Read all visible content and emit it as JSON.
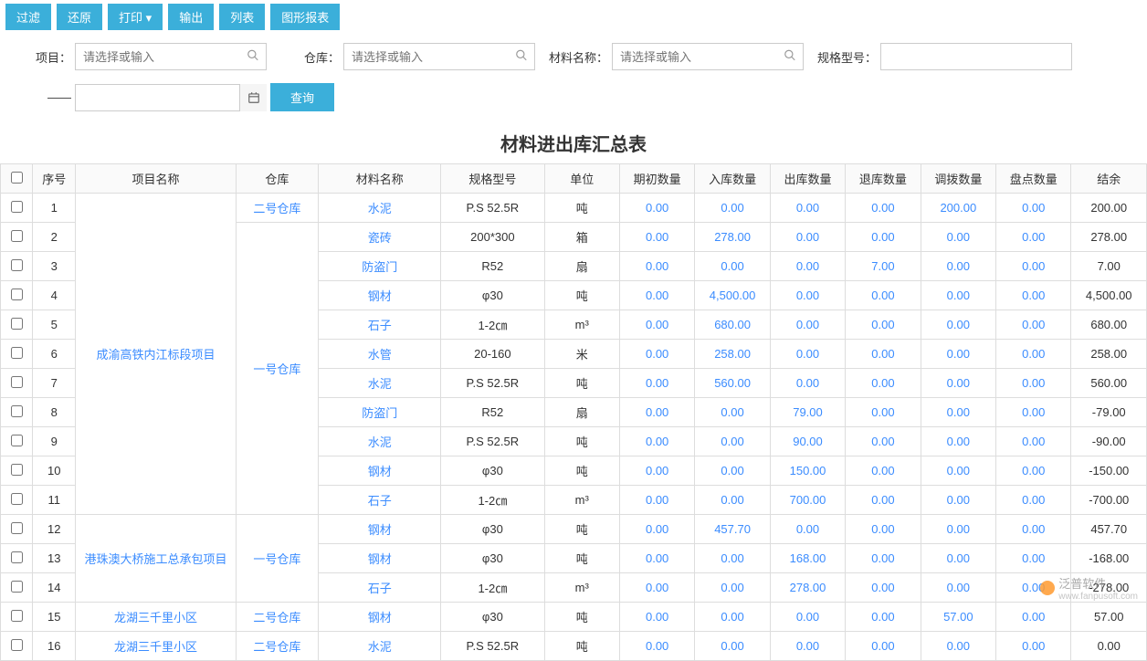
{
  "colors": {
    "primary": "#3bafda",
    "link": "#3b8cff",
    "border": "#ddd",
    "text": "#333"
  },
  "toolbar": {
    "filter": "过滤",
    "reset": "还原",
    "print": "打印",
    "export": "输出",
    "list": "列表",
    "chart": "图形报表"
  },
  "filters": {
    "project_label": "项目：",
    "project_placeholder": "请选择或输入",
    "warehouse_label": "仓库：",
    "warehouse_placeholder": "请选择或输入",
    "material_label": "材料名称：",
    "material_placeholder": "请选择或输入",
    "spec_label": "规格型号：",
    "dash": "——",
    "query": "查询"
  },
  "report": {
    "title": "材料进出库汇总表"
  },
  "table": {
    "headers": {
      "seq": "序号",
      "project": "项目名称",
      "warehouse": "仓库",
      "material": "材料名称",
      "spec": "规格型号",
      "unit": "单位",
      "begin": "期初数量",
      "in": "入库数量",
      "out": "出库数量",
      "return": "退库数量",
      "transfer": "调拨数量",
      "check": "盘点数量",
      "balance": "结余"
    },
    "rows": [
      {
        "seq": "1",
        "project": "成渝高铁内江标段项目",
        "warehouse": "二号仓库",
        "material": "水泥",
        "spec": "P.S 52.5R",
        "unit": "吨",
        "begin": "0.00",
        "in": "0.00",
        "out": "0.00",
        "return": "0.00",
        "transfer": "200.00",
        "check": "0.00",
        "balance": "200.00"
      },
      {
        "seq": "2",
        "project": "",
        "warehouse": "一号仓库",
        "material": "瓷砖",
        "spec": "200*300",
        "unit": "箱",
        "begin": "0.00",
        "in": "278.00",
        "out": "0.00",
        "return": "0.00",
        "transfer": "0.00",
        "check": "0.00",
        "balance": "278.00"
      },
      {
        "seq": "3",
        "project": "",
        "warehouse": "",
        "material": "防盗门",
        "spec": "R52",
        "unit": "扇",
        "begin": "0.00",
        "in": "0.00",
        "out": "0.00",
        "return": "7.00",
        "transfer": "0.00",
        "check": "0.00",
        "balance": "7.00"
      },
      {
        "seq": "4",
        "project": "",
        "warehouse": "",
        "material": "钢材",
        "spec": "φ30",
        "unit": "吨",
        "begin": "0.00",
        "in": "4,500.00",
        "out": "0.00",
        "return": "0.00",
        "transfer": "0.00",
        "check": "0.00",
        "balance": "4,500.00"
      },
      {
        "seq": "5",
        "project": "",
        "warehouse": "",
        "material": "石子",
        "spec": "1-2㎝",
        "unit": "m&#179;",
        "begin": "0.00",
        "in": "680.00",
        "out": "0.00",
        "return": "0.00",
        "transfer": "0.00",
        "check": "0.00",
        "balance": "680.00"
      },
      {
        "seq": "6",
        "project": "",
        "warehouse": "",
        "material": "水管",
        "spec": "20-160",
        "unit": "米",
        "begin": "0.00",
        "in": "258.00",
        "out": "0.00",
        "return": "0.00",
        "transfer": "0.00",
        "check": "0.00",
        "balance": "258.00"
      },
      {
        "seq": "7",
        "project": "",
        "warehouse": "",
        "material": "水泥",
        "spec": "P.S 52.5R",
        "unit": "吨",
        "begin": "0.00",
        "in": "560.00",
        "out": "0.00",
        "return": "0.00",
        "transfer": "0.00",
        "check": "0.00",
        "balance": "560.00"
      },
      {
        "seq": "8",
        "project": "",
        "warehouse": "",
        "material": "防盗门",
        "spec": "R52",
        "unit": "扇",
        "begin": "0.00",
        "in": "0.00",
        "out": "79.00",
        "return": "0.00",
        "transfer": "0.00",
        "check": "0.00",
        "balance": "-79.00"
      },
      {
        "seq": "9",
        "project": "",
        "warehouse": "",
        "material": "水泥",
        "spec": "P.S 52.5R",
        "unit": "吨",
        "begin": "0.00",
        "in": "0.00",
        "out": "90.00",
        "return": "0.00",
        "transfer": "0.00",
        "check": "0.00",
        "balance": "-90.00"
      },
      {
        "seq": "10",
        "project": "",
        "warehouse": "",
        "material": "钢材",
        "spec": "φ30",
        "unit": "吨",
        "begin": "0.00",
        "in": "0.00",
        "out": "150.00",
        "return": "0.00",
        "transfer": "0.00",
        "check": "0.00",
        "balance": "-150.00"
      },
      {
        "seq": "11",
        "project": "",
        "warehouse": "",
        "material": "石子",
        "spec": "1-2㎝",
        "unit": "m&#179;",
        "begin": "0.00",
        "in": "0.00",
        "out": "700.00",
        "return": "0.00",
        "transfer": "0.00",
        "check": "0.00",
        "balance": "-700.00"
      },
      {
        "seq": "12",
        "project": "港珠澳大桥施工总承包项目",
        "warehouse": "一号仓库",
        "material": "钢材",
        "spec": "φ30",
        "unit": "吨",
        "begin": "0.00",
        "in": "457.70",
        "out": "0.00",
        "return": "0.00",
        "transfer": "0.00",
        "check": "0.00",
        "balance": "457.70"
      },
      {
        "seq": "13",
        "project": "",
        "warehouse": "",
        "material": "钢材",
        "spec": "φ30",
        "unit": "吨",
        "begin": "0.00",
        "in": "0.00",
        "out": "168.00",
        "return": "0.00",
        "transfer": "0.00",
        "check": "0.00",
        "balance": "-168.00"
      },
      {
        "seq": "14",
        "project": "",
        "warehouse": "",
        "material": "石子",
        "spec": "1-2㎝",
        "unit": "m&#179;",
        "begin": "0.00",
        "in": "0.00",
        "out": "278.00",
        "return": "0.00",
        "transfer": "0.00",
        "check": "0.00",
        "balance": "-278.00"
      },
      {
        "seq": "15",
        "project": "龙湖三千里小区",
        "warehouse": "二号仓库",
        "material": "钢材",
        "spec": "φ30",
        "unit": "吨",
        "begin": "0.00",
        "in": "0.00",
        "out": "0.00",
        "return": "0.00",
        "transfer": "57.00",
        "check": "0.00",
        "balance": "57.00"
      },
      {
        "seq": "16",
        "project": "龙湖三千里小区",
        "warehouse": "二号仓库",
        "material": "水泥",
        "spec": "P.S 52.5R",
        "unit": "吨",
        "begin": "0.00",
        "in": "0.00",
        "out": "0.00",
        "return": "0.00",
        "transfer": "0.00",
        "check": "0.00",
        "balance": "0.00"
      }
    ],
    "rowspans": {
      "project": [
        {
          "start": 0,
          "span": 11
        },
        {
          "start": 11,
          "span": 3
        }
      ],
      "warehouse": [
        {
          "start": 1,
          "span": 10
        },
        {
          "start": 11,
          "span": 3
        }
      ]
    }
  },
  "watermark": {
    "brand": "泛普软件",
    "url": "www.fanpusoft.com"
  }
}
